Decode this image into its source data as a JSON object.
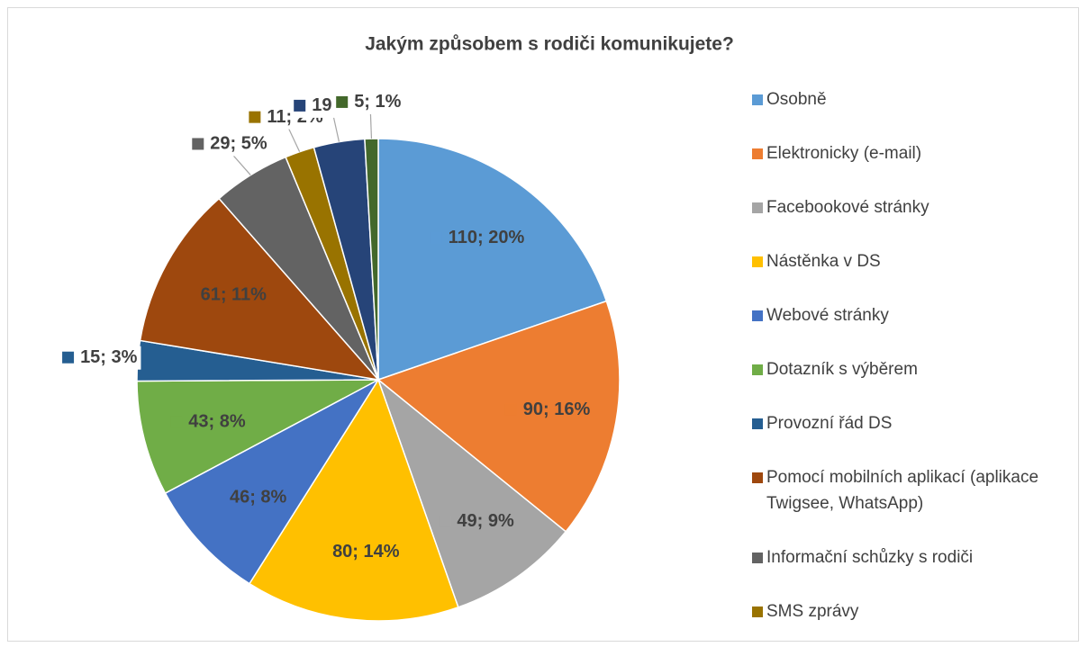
{
  "chart_data": {
    "type": "pie",
    "title": "Jakým způsobem s rodiči komunikujete?",
    "categories": [
      "Osobně",
      "Elektronicky (e-mail)",
      "Facebookové stránky",
      "Nástěnka v DS",
      "Webové stránky",
      "Dotazník s výběrem",
      "Provozní řád DS",
      "Pomocí mobilních aplikací (aplikace Twigsee, WhatsApp)",
      "Informační schůzky s rodiči",
      "SMS zprávy",
      null,
      null
    ],
    "values": [
      110,
      90,
      49,
      80,
      46,
      43,
      15,
      61,
      29,
      11,
      19,
      5
    ],
    "value_labels": [
      "110; 20%",
      "90; 16%",
      "49; 9%",
      "80; 14%",
      "46; 8%",
      "43; 8%",
      "15; 3%",
      "61; 11%",
      "29; 5%",
      "11; 2%",
      "19; 3%",
      "5; 1%"
    ],
    "colors": [
      "#5b9bd5",
      "#ed7d31",
      "#a5a5a5",
      "#ffc000",
      "#4472c4",
      "#70ad47",
      "#255e91",
      "#9e480e",
      "#636363",
      "#997300",
      "#264478",
      "#43682b"
    ],
    "legend": "right"
  }
}
